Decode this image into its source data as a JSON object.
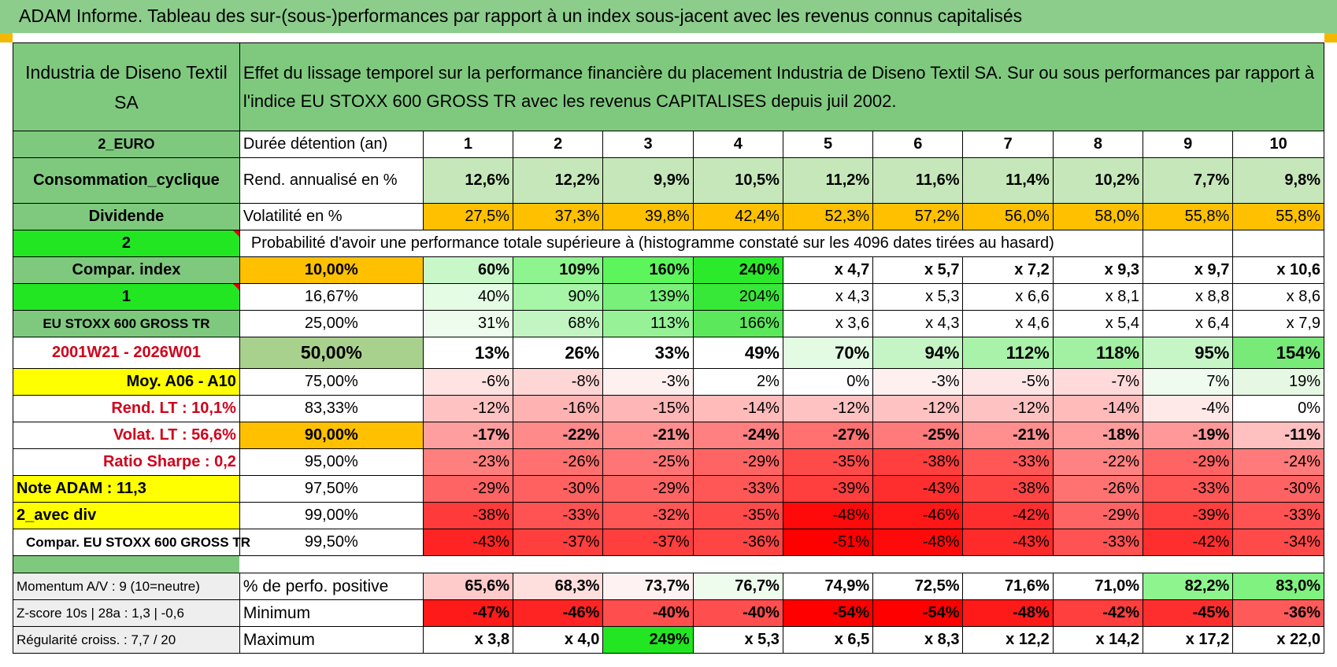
{
  "title": "ADAM Informe. Tableau des sur-(sous-)performances par rapport à un index sous-jacent avec les revenus connus capitalisés",
  "header": {
    "name": "Industria de Diseno Textil SA",
    "description": "Effet du lissage temporel sur la performance financière du placement Industria de Diseno Textil SA. Sur ou sous performances par rapport à l'indice EU STOXX 600 GROSS TR avec les revenus CAPITALISES depuis juil 2002."
  },
  "left": {
    "currency": "2_EURO",
    "sector": "Consommation_cyclique",
    "dividend": "Dividende",
    "value2": "2",
    "compar_index": "Compar. index",
    "value1": "1",
    "index_name": "EU STOXX 600 GROSS TR",
    "period": "2001W21 - 2026W01",
    "moy": "Moy. A06 - A10",
    "rend_lt": "Rend. LT :    10,1%",
    "volat_lt": "Volat. LT :    56,6%",
    "sharpe": "Ratio Sharpe :     0,2",
    "note": "Note ADAM : 11,3",
    "avec_div": "2_avec div",
    "compar_full": "Compar. EU STOXX 600 GROSS TR",
    "momentum": "Momentum A/V : 9 (10=neutre)",
    "zscore": "Z-score 10s | 28a : 1,3 | -0,6",
    "regularite": "Régularité croiss. : 7,7 / 20"
  },
  "duration": {
    "label": "Durée détention (an)",
    "years": [
      "1",
      "2",
      "3",
      "4",
      "5",
      "6",
      "7",
      "8",
      "9",
      "10"
    ]
  },
  "rend": {
    "label": "Rend. annualisé en %",
    "values": [
      "12,6%",
      "12,2%",
      "9,9%",
      "10,5%",
      "11,2%",
      "11,6%",
      "11,4%",
      "10,2%",
      "7,7%",
      "9,8%"
    ]
  },
  "vol": {
    "label": "Volatilité en %",
    "values": [
      "27,5%",
      "37,3%",
      "39,8%",
      "42,4%",
      "52,3%",
      "57,2%",
      "56,0%",
      "58,0%",
      "55,8%",
      "55,8%"
    ]
  },
  "prob_label": "Probabilité d'avoir une performance totale supérieure à (histogramme constaté sur les 4096 dates tirées au hasard)",
  "percentiles": [
    {
      "p": "10,00%",
      "values": [
        "60%",
        "109%",
        "160%",
        "240%",
        "x 4,7",
        "x 5,7",
        "x 7,2",
        "x 9,3",
        "x 9,7",
        "x 10,6"
      ]
    },
    {
      "p": "16,67%",
      "values": [
        "40%",
        "90%",
        "139%",
        "204%",
        "x 4,3",
        "x 5,3",
        "x 6,6",
        "x 8,1",
        "x 8,8",
        "x 8,6"
      ]
    },
    {
      "p": "25,00%",
      "values": [
        "31%",
        "68%",
        "113%",
        "166%",
        "x 3,6",
        "x 4,3",
        "x 4,6",
        "x 5,4",
        "x 6,4",
        "x 7,9"
      ]
    },
    {
      "p": "50,00%",
      "values": [
        "13%",
        "26%",
        "33%",
        "49%",
        "70%",
        "94%",
        "112%",
        "118%",
        "95%",
        "154%"
      ]
    },
    {
      "p": "75,00%",
      "values": [
        "-6%",
        "-8%",
        "-3%",
        "2%",
        "0%",
        "-3%",
        "-5%",
        "-7%",
        "7%",
        "19%"
      ]
    },
    {
      "p": "83,33%",
      "values": [
        "-12%",
        "-16%",
        "-15%",
        "-14%",
        "-12%",
        "-12%",
        "-12%",
        "-14%",
        "-4%",
        "0%"
      ]
    },
    {
      "p": "90,00%",
      "values": [
        "-17%",
        "-22%",
        "-21%",
        "-24%",
        "-27%",
        "-25%",
        "-21%",
        "-18%",
        "-19%",
        "-11%"
      ]
    },
    {
      "p": "95,00%",
      "values": [
        "-23%",
        "-26%",
        "-25%",
        "-29%",
        "-35%",
        "-38%",
        "-33%",
        "-22%",
        "-29%",
        "-24%"
      ]
    },
    {
      "p": "97,50%",
      "values": [
        "-29%",
        "-30%",
        "-29%",
        "-33%",
        "-39%",
        "-43%",
        "-38%",
        "-26%",
        "-33%",
        "-30%"
      ]
    },
    {
      "p": "99,00%",
      "values": [
        "-38%",
        "-33%",
        "-32%",
        "-35%",
        "-48%",
        "-46%",
        "-42%",
        "-29%",
        "-39%",
        "-33%"
      ]
    },
    {
      "p": "99,50%",
      "values": [
        "-43%",
        "-37%",
        "-37%",
        "-36%",
        "-51%",
        "-48%",
        "-43%",
        "-33%",
        "-42%",
        "-34%"
      ]
    }
  ],
  "positive": {
    "label": "% de perfo. positive",
    "values": [
      "65,6%",
      "68,3%",
      "73,7%",
      "76,7%",
      "74,9%",
      "72,5%",
      "71,6%",
      "71,0%",
      "82,2%",
      "83,0%"
    ]
  },
  "minimum": {
    "label": "Minimum",
    "values": [
      "-47%",
      "-46%",
      "-40%",
      "-40%",
      "-54%",
      "-54%",
      "-48%",
      "-42%",
      "-45%",
      "-36%"
    ]
  },
  "maximum": {
    "label": "Maximum",
    "values": [
      "x 3,8",
      "x 4,0",
      "249%",
      "x 5,3",
      "x 6,5",
      "x 8,3",
      "x 12,2",
      "x 14,2",
      "x 17,2",
      "x 22,0"
    ]
  },
  "colors": {
    "header_green": "#7fc97f",
    "banner_green": "#8ccd8c",
    "orange": "#ffc000",
    "yellow": "#ffff00",
    "bright_green": "#22e622",
    "label_red": "#d0021b",
    "vol_row": [
      "#ffc000",
      "#ffc000",
      "#ffc000",
      "#ffc000",
      "#ffc000",
      "#ffc000",
      "#ffc000",
      "#ffc000",
      "#ffc000",
      "#ffc000"
    ],
    "rend_row": [
      "#c6e7b9",
      "#c6e7b9",
      "#c6e7b9",
      "#c6e7b9",
      "#c6e7b9",
      "#c6e7b9",
      "#c6e7b9",
      "#c6e7b9",
      "#c6e7b9",
      "#c6e7b9"
    ],
    "percentiles": [
      [
        "#c8f7c8",
        "#8ef58e",
        "#5cf55c",
        "#2bea2b",
        "#ffffff",
        "#ffffff",
        "#ffffff",
        "#ffffff",
        "#ffffff",
        "#ffffff"
      ],
      [
        "#e4fbe4",
        "#a7f5a7",
        "#79f079",
        "#38e838",
        "#ffffff",
        "#ffffff",
        "#ffffff",
        "#ffffff",
        "#ffffff",
        "#ffffff"
      ],
      [
        "#eefcee",
        "#c2f5c2",
        "#97f297",
        "#5be85b",
        "#ffffff",
        "#ffffff",
        "#ffffff",
        "#ffffff",
        "#ffffff",
        "#ffffff"
      ],
      [
        "#ffffff",
        "#ffffff",
        "#ffffff",
        "#ffffff",
        "#e2fbe2",
        "#c5f5c5",
        "#a9f2a9",
        "#a2f0a2",
        "#c6f5c6",
        "#77ea77"
      ],
      [
        "#ffe2e2",
        "#ffd6d6",
        "#fff0f0",
        "#ffffff",
        "#ffffff",
        "#fff0f0",
        "#ffe6e6",
        "#ffdada",
        "#f0fbef",
        "#e6f7e4"
      ],
      [
        "#ffc2c2",
        "#ffb2b2",
        "#ffb6b6",
        "#ffbaba",
        "#ffc2c2",
        "#ffc2c2",
        "#ffc2c2",
        "#ffbaba",
        "#ffe8e8",
        "#ffffff"
      ],
      [
        "#ff9e9e",
        "#ff8a8a",
        "#ff8e8e",
        "#ff8080",
        "#ff7070",
        "#ff7a7a",
        "#ff8e8e",
        "#ff9c9c",
        "#ff9898",
        "#ffc0c0"
      ],
      [
        "#ff7e7e",
        "#ff7070",
        "#ff7474",
        "#ff6464",
        "#ff4a4a",
        "#ff3e3e",
        "#ff5656",
        "#ff8282",
        "#ff6464",
        "#ff7a7a"
      ],
      [
        "#ff6464",
        "#ff6060",
        "#ff6464",
        "#ff5656",
        "#ff3e3e",
        "#ff2e2e",
        "#ff4444",
        "#ff7272",
        "#ff5656",
        "#ff6262"
      ],
      [
        "#ff3a3a",
        "#ff5252",
        "#ff5656",
        "#ff4a4a",
        "#ff0a0a",
        "#ff1616",
        "#ff2e2e",
        "#ff6464",
        "#ff3e3e",
        "#ff5252"
      ],
      [
        "#ff2424",
        "#ff3e3e",
        "#ff3e3e",
        "#ff4444",
        "#ff0000",
        "#ff0a0a",
        "#ff2a2a",
        "#ff5252",
        "#ff2e2e",
        "#ff4a4a"
      ]
    ],
    "positive_row": [
      "#ffcaca",
      "#ffdede",
      "#fff2f2",
      "#eefcee",
      "#ffffff",
      "#ffffff",
      "#ffffff",
      "#ffffff",
      "#8ef58e",
      "#7ff27f"
    ],
    "minimum_row": [
      "#ff1a1a",
      "#ff2424",
      "#ff4e4e",
      "#ff4e4e",
      "#ff0000",
      "#ff0000",
      "#ff1a1a",
      "#ff3e3e",
      "#ff2e2e",
      "#ff5a5a"
    ],
    "maximum_row": [
      "#ffffff",
      "#ffffff",
      "#22e622",
      "#ffffff",
      "#ffffff",
      "#ffffff",
      "#ffffff",
      "#ffffff",
      "#ffffff",
      "#ffffff"
    ]
  }
}
